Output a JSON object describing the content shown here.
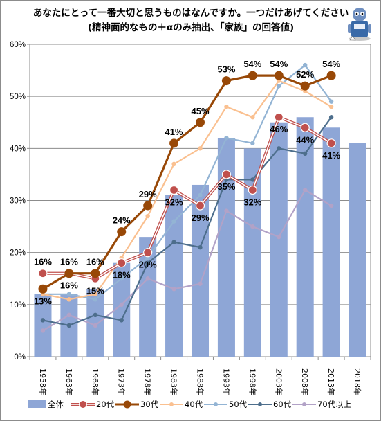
{
  "title_line1": "あなたにとって一番大切と思うものはなんですか。一つだけあげてください",
  "title_line2": "(精神面的なもの＋αのみ抽出、「家族」の回答値)",
  "mascot_icon": "robot-mascot-icon",
  "chart_data": {
    "type": "bar",
    "categories": [
      "1958年",
      "1963年",
      "1968年",
      "1973年",
      "1978年",
      "1983年",
      "1988年",
      "1993年",
      "1998年",
      "2003年",
      "2008年",
      "2013年",
      "2018年"
    ],
    "ylim": [
      0,
      60
    ],
    "yticks": [
      "0%",
      "10%",
      "20%",
      "30%",
      "40%",
      "50%",
      "60%"
    ],
    "grid": true,
    "legend_position": "bottom",
    "bar_series": {
      "name": "全体",
      "color": "#8ea6d6",
      "values": [
        12,
        12,
        13,
        18,
        23,
        31,
        33,
        42,
        40,
        45,
        46,
        44,
        41
      ]
    },
    "line_series": [
      {
        "name": "20代",
        "color": "#c0504d",
        "values": [
          16,
          16,
          15,
          18,
          20,
          32,
          29,
          35,
          32,
          46,
          44,
          41,
          null
        ],
        "labeled": true
      },
      {
        "name": "30代",
        "color": "#984807",
        "values": [
          13,
          16,
          16,
          24,
          29,
          41,
          45,
          53,
          54,
          54,
          52,
          54,
          null
        ],
        "labeled": true
      },
      {
        "name": "40代",
        "color": "#fac090",
        "values": [
          12,
          11,
          12,
          19,
          27,
          37,
          40,
          48,
          46,
          53,
          51,
          48,
          null
        ]
      },
      {
        "name": "50代",
        "color": "#93b4d4",
        "values": [
          12,
          12,
          11,
          15,
          19,
          26,
          31,
          42,
          41,
          52,
          56,
          49,
          null
        ]
      },
      {
        "name": "60代",
        "color": "#4d6e8c",
        "values": [
          7,
          6,
          8,
          7,
          18,
          22,
          21,
          34,
          34,
          40,
          39,
          46,
          null
        ]
      },
      {
        "name": "70代以上",
        "color": "#b2a2c7",
        "values": [
          5,
          8,
          6,
          10,
          15,
          13,
          14,
          28,
          25,
          23,
          32,
          29,
          null
        ]
      }
    ],
    "data_labels": {
      "20代": [
        "16%",
        "16%",
        "15%",
        "18%",
        "20%",
        "32%",
        "29%",
        "35%",
        "32%",
        "46%",
        "44%",
        "41%"
      ],
      "30代": [
        "13%",
        "16%",
        "16%",
        "24%",
        "29%",
        "41%",
        "45%",
        "53%",
        "54%",
        "54%",
        "52%",
        "54%"
      ]
    }
  }
}
